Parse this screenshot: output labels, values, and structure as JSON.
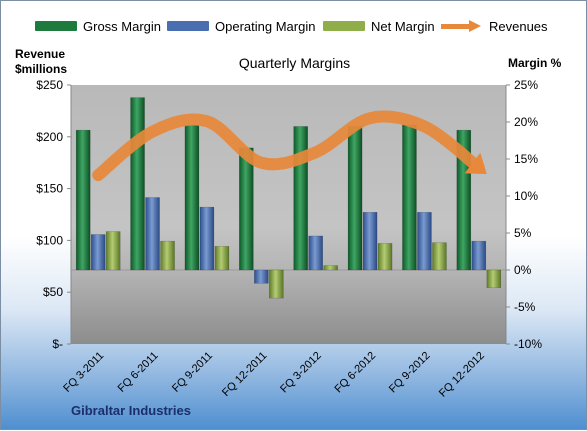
{
  "legend": [
    {
      "label": "Gross Margin",
      "color": "#1f7a3e"
    },
    {
      "label": "Operating Margin",
      "color": "#4a6fb0"
    },
    {
      "label": "Net Margin",
      "color": "#8fae4a"
    },
    {
      "label": "Revenues",
      "color": "#e8883a"
    }
  ],
  "left_axis_title_line1": "Revenue",
  "left_axis_title_line2": "$millions",
  "right_axis_title": "Margin %",
  "footer_label": "Gibraltar Industries",
  "chart_data": {
    "type": "bar",
    "title": "Quarterly Margins",
    "categories": [
      "FQ 3-2011",
      "FQ 6-2011",
      "FQ 9-2011",
      "FQ 12-2011",
      "FQ 3-2012",
      "FQ 6-2012",
      "FQ 9-2012",
      "FQ 12-2012"
    ],
    "series": [
      {
        "name": "Gross Margin",
        "axis": "right",
        "values": [
          18.9,
          23.3,
          19.6,
          16.5,
          19.4,
          19.4,
          19.6,
          18.9
        ]
      },
      {
        "name": "Operating Margin",
        "axis": "right",
        "values": [
          4.8,
          9.8,
          8.5,
          -1.8,
          4.6,
          7.8,
          7.8,
          3.9
        ]
      },
      {
        "name": "Net Margin",
        "axis": "right",
        "values": [
          5.2,
          3.9,
          3.2,
          -3.8,
          0.6,
          3.6,
          3.7,
          -2.4
        ]
      },
      {
        "name": "Revenues",
        "axis": "left",
        "values": [
          163,
          205,
          215,
          175,
          185,
          218,
          210,
          170
        ]
      }
    ],
    "left_axis": {
      "label": "Revenue $millions",
      "ylim": [
        0,
        250
      ],
      "ticks": [
        "$-",
        "$50",
        "$100",
        "$150",
        "$200",
        "$250"
      ]
    },
    "right_axis": {
      "label": "Margin %",
      "ylim": [
        -10,
        25
      ],
      "ticks": [
        "-10%",
        "-5%",
        "0%",
        "5%",
        "10%",
        "15%",
        "20%",
        "25%"
      ]
    },
    "grid": false,
    "legend_position": "top"
  }
}
